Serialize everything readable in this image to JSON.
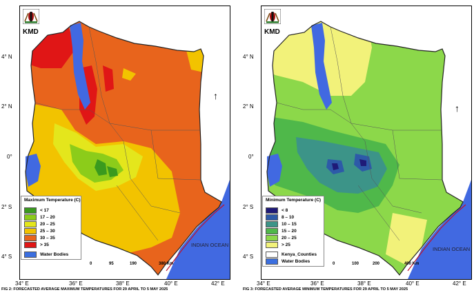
{
  "logo": {
    "text": "KMD"
  },
  "latitude_labels": [
    "4° N",
    "2° N",
    "0°",
    "2° S",
    "4° S"
  ],
  "longitude_labels": [
    "34° E",
    "36° E",
    "38° E",
    "40° E",
    "42° E"
  ],
  "ocean_label": "INDIAN OCEAN",
  "left_map": {
    "caption": "FIG 2: FORECASTED AVERAGE MAXIMUM TEMPERATURES FOR 29 APRIL TO 5 MAY 2025",
    "legend_title": "Maximum Temperature (C)",
    "legend_items": [
      {
        "label": "< 17",
        "color": "#3a9a1e"
      },
      {
        "label": "17 – 20",
        "color": "#8ccc1a"
      },
      {
        "label": "20 – 25",
        "color": "#e4e61c"
      },
      {
        "label": "25 – 30",
        "color": "#f2c300"
      },
      {
        "label": "30 – 35",
        "color": "#e8641c"
      },
      {
        "label": "> 35",
        "color": "#e01616"
      }
    ],
    "water_label": "Water Bodies",
    "water_color": "#3b6fe0",
    "scale": {
      "ticks": [
        "0",
        "95",
        "190",
        "380 Km"
      ]
    }
  },
  "right_map": {
    "caption": "FIG 3: FORECASTED AVERAGE MINIMUM TEMPERATURES FOR 29 APRIL TO 5 MAY 2025",
    "legend_title": "Minimum Temperature (C)",
    "legend_items": [
      {
        "label": "< 8",
        "color": "#1f1a78"
      },
      {
        "label": "8 – 10",
        "color": "#2d5aa8"
      },
      {
        "label": "10 – 15",
        "color": "#3c9488"
      },
      {
        "label": "15 – 20",
        "color": "#4fb84a"
      },
      {
        "label": "20 – 25",
        "color": "#8cd84a"
      },
      {
        "label": "> 25",
        "color": "#f2f27a"
      }
    ],
    "counties_label": "Kenya_Counties",
    "water_label": "Water Bodies",
    "water_color": "#3b6fe0",
    "scale": {
      "ticks": [
        "0",
        "100",
        "200",
        "400 Km"
      ]
    }
  }
}
